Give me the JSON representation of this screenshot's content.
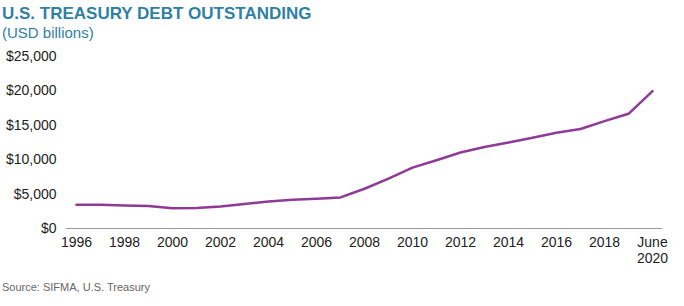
{
  "chart_data": {
    "type": "line",
    "title": "U.S. TREASURY DEBT OUTSTANDING",
    "subtitle": "(USD billions)",
    "caption": "Source: SIFMA, U.S. Treasury",
    "categories": [
      "1996",
      null,
      "1998",
      null,
      "2000",
      null,
      "2002",
      null,
      "2004",
      null,
      "2006",
      null,
      "2008",
      null,
      "2010",
      null,
      "2012",
      null,
      "2014",
      null,
      "2016",
      null,
      "2018",
      null,
      "June\n2020"
    ],
    "values": [
      3460,
      3460,
      3360,
      3270,
      2950,
      2970,
      3200,
      3570,
      3940,
      4170,
      4320,
      4520,
      5780,
      7250,
      8850,
      9930,
      11050,
      11850,
      12500,
      13190,
      13910,
      14470,
      15610,
      16670,
      19960
    ],
    "color": "#8e3a96",
    "ylim": [
      0,
      25000
    ],
    "yticks": [
      {
        "value": 0,
        "label": "$0"
      },
      {
        "value": 5000,
        "label": "$5,000"
      },
      {
        "value": 10000,
        "label": "$10,000"
      },
      {
        "value": 15000,
        "label": "$15,000"
      },
      {
        "value": 20000,
        "label": "$20,000"
      },
      {
        "value": 25000,
        "label": "$25,000"
      }
    ],
    "grid": false
  }
}
